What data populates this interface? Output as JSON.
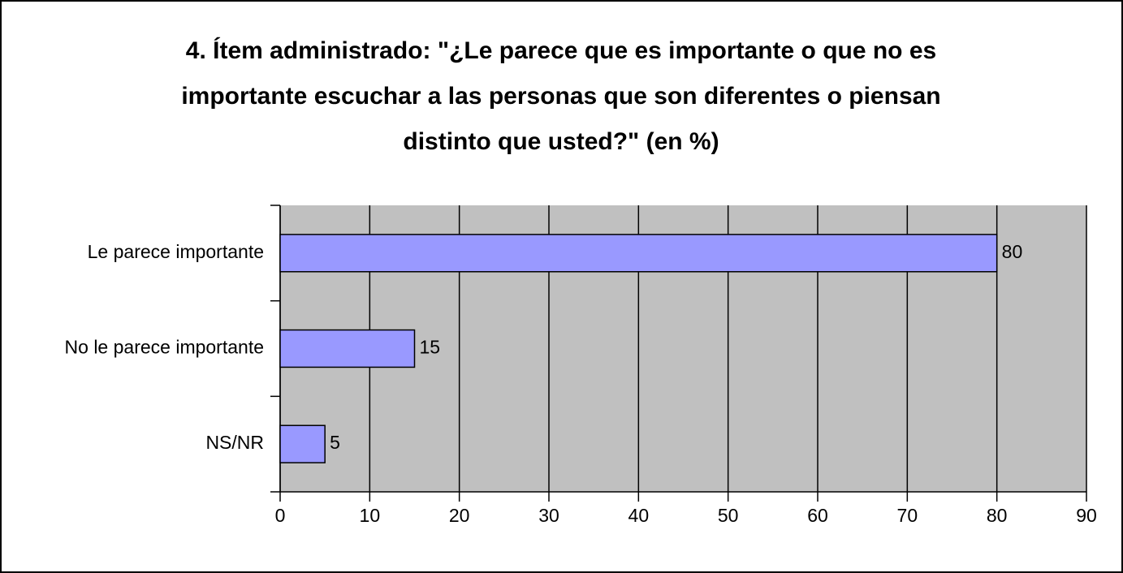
{
  "chart_data": {
    "type": "bar",
    "orientation": "horizontal",
    "title": [
      "4. Ítem administrado: \"¿Le parece que es importante o que no es",
      "importante escuchar a las personas que son diferentes o piensan",
      "distinto que usted?\" (en %)"
    ],
    "categories": [
      "Le parece importante",
      "No le parece importante",
      "NS/NR"
    ],
    "values": [
      80,
      15,
      5
    ],
    "color": "#9999ff",
    "xlim": [
      0,
      90
    ],
    "xticks": [
      0,
      10,
      20,
      30,
      40,
      50,
      60,
      70,
      80,
      90
    ],
    "grid": true
  }
}
